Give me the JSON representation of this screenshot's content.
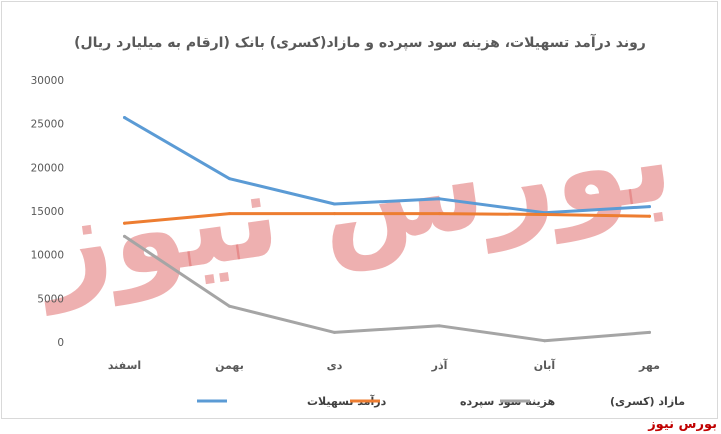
{
  "chart_data": {
    "type": "line",
    "title": "روند درآمد تسهیلات، هزینه سود سپرده و مازاد(کسری) بانک (ارقام به میلیارد ریال)",
    "categories": [
      "مهر",
      "آبان",
      "آذر",
      "دی",
      "بهمن",
      "اسفند"
    ],
    "ylim": [
      0,
      30000
    ],
    "yticks": [
      "0",
      "5000",
      "10000",
      "15000",
      "20000",
      "25000",
      "30000"
    ],
    "series": [
      {
        "name": "درآمد تسهیلات",
        "color": "#5b9bd5",
        "values": [
          15500,
          14800,
          16400,
          15800,
          18700,
          25700
        ]
      },
      {
        "name": "هزینه سود سپرده",
        "color": "#ed7d31",
        "values": [
          14400,
          14600,
          14700,
          14700,
          14700,
          13600
        ]
      },
      {
        "name": "مازاد (کسری)",
        "color": "#a5a5a5",
        "values": [
          1100,
          150,
          1850,
          1100,
          4100,
          12100
        ]
      }
    ],
    "grid": false,
    "legend_position": "bottom"
  },
  "watermark": "بورس نیوز",
  "brand": "بورس نیوز"
}
